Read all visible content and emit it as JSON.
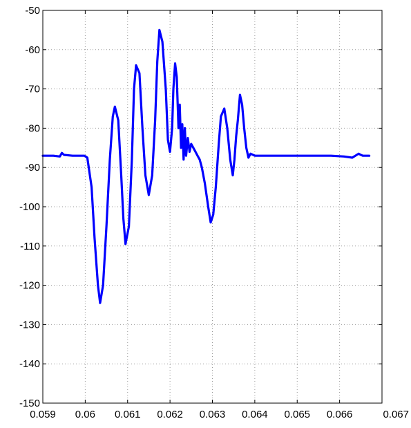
{
  "chart_data": {
    "type": "line",
    "title": "",
    "xlabel": "",
    "ylabel": "",
    "xlim": [
      0.059,
      0.067
    ],
    "ylim": [
      -150,
      -50
    ],
    "grid": true,
    "x_ticks": [
      0.059,
      0.06,
      0.061,
      0.062,
      0.063,
      0.064,
      0.065,
      0.066,
      0.067
    ],
    "x_tick_labels": [
      "0.059",
      "0.06",
      "0.061",
      "0.062",
      "0.063",
      "0.064",
      "0.065",
      "0.066",
      "0.067"
    ],
    "y_ticks": [
      -50,
      -60,
      -70,
      -80,
      -90,
      -100,
      -110,
      -120,
      -130,
      -140,
      -150
    ],
    "y_tick_labels": [
      "-50",
      "-60",
      "-70",
      "-80",
      "-90",
      "-100",
      "-110",
      "-120",
      "-130",
      "-140",
      "-150"
    ],
    "series": [
      {
        "color": "#0000ff",
        "x": [
          0.059,
          0.05925,
          0.0594,
          0.05945,
          0.0595,
          0.0597,
          0.05985,
          0.05998,
          0.06005,
          0.06015,
          0.06022,
          0.0603,
          0.06035,
          0.06042,
          0.0605,
          0.06058,
          0.06065,
          0.0607,
          0.06078,
          0.06085,
          0.0609,
          0.06095,
          0.06103,
          0.0611,
          0.06115,
          0.0612,
          0.06128,
          0.06135,
          0.06142,
          0.0615,
          0.06158,
          0.06165,
          0.0617,
          0.06175,
          0.06182,
          0.0619,
          0.06195,
          0.062,
          0.06205,
          0.06208,
          0.06212,
          0.06216,
          0.0622,
          0.06223,
          0.06226,
          0.06229,
          0.06232,
          0.06235,
          0.06238,
          0.06242,
          0.06246,
          0.0625,
          0.06255,
          0.0626,
          0.06265,
          0.0627,
          0.06275,
          0.06282,
          0.0629,
          0.06296,
          0.06302,
          0.06308,
          0.06315,
          0.0632,
          0.06328,
          0.06335,
          0.06342,
          0.06348,
          0.06352,
          0.06356,
          0.0636,
          0.06365,
          0.0637,
          0.06375,
          0.0638,
          0.06385,
          0.0639,
          0.064,
          0.0643,
          0.0646,
          0.0649,
          0.0652,
          0.0655,
          0.0658,
          0.0661,
          0.0663,
          0.06645,
          0.0665,
          0.06655,
          0.0667
        ],
        "y": [
          -87,
          -87,
          -87.2,
          -86.3,
          -86.8,
          -87,
          -87,
          -87,
          -87.5,
          -95,
          -108,
          -120,
          -124.5,
          -120,
          -105,
          -88,
          -77,
          -74.5,
          -78,
          -92,
          -103,
          -109.5,
          -105,
          -88,
          -70,
          -64,
          -66,
          -80,
          -92,
          -97,
          -92,
          -78,
          -63,
          -55,
          -58,
          -70,
          -83,
          -86,
          -80,
          -70,
          -63.5,
          -67,
          -80,
          -74,
          -85,
          -79,
          -88,
          -80,
          -87,
          -82.5,
          -86,
          -84,
          -85,
          -86,
          -87,
          -88,
          -90,
          -94,
          -100,
          -104,
          -102,
          -95,
          -84,
          -77,
          -75,
          -80,
          -88,
          -92,
          -88,
          -82,
          -78,
          -71.5,
          -74,
          -80,
          -85,
          -87.5,
          -86.5,
          -87,
          -87,
          -87,
          -87,
          -87,
          -87,
          -87,
          -87.2,
          -87.5,
          -86.5,
          -86.8,
          -87,
          -87
        ]
      }
    ]
  }
}
